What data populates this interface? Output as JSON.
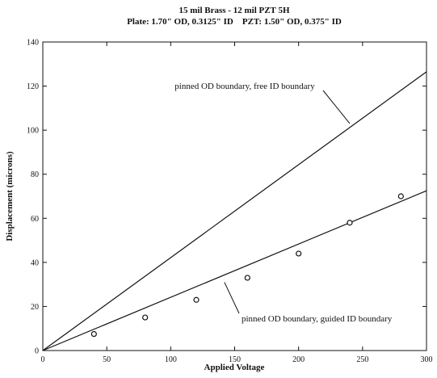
{
  "chart_data": {
    "type": "line",
    "title": "15 mil Brass - 12 mil PZT 5H",
    "subtitle": "Plate: 1.70\" OD, 0.3125\" ID    PZT: 1.50\" OD, 0.375\" ID",
    "xlabel": "Applied Voltage",
    "ylabel": "Displacement (microns)",
    "xlim": [
      0,
      300
    ],
    "ylim": [
      0,
      140
    ],
    "xticks": [
      0,
      50,
      100,
      150,
      200,
      250,
      300
    ],
    "yticks": [
      0,
      20,
      40,
      60,
      80,
      100,
      120,
      140
    ],
    "grid": false,
    "series": [
      {
        "kind": "line",
        "x": [
          0,
          300
        ],
        "y": [
          0,
          126.5
        ]
      },
      {
        "kind": "line",
        "x": [
          0,
          300
        ],
        "y": [
          0,
          72.5
        ]
      },
      {
        "kind": "scatter",
        "x": [
          40,
          80,
          120,
          160,
          200,
          240,
          280
        ],
        "y": [
          7.5,
          15,
          23,
          33,
          44,
          58,
          70
        ]
      }
    ],
    "annotations": [
      {
        "text": "pinned OD boundary, free ID boundary",
        "x": 240,
        "y": 103
      },
      {
        "text": "pinned OD boundary, guided ID boundary",
        "x": 142,
        "y": 31
      }
    ]
  }
}
